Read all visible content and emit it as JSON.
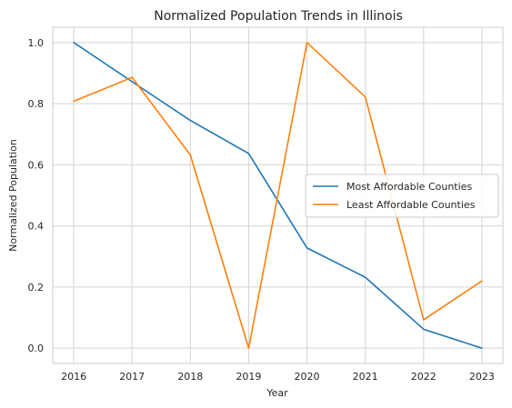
{
  "chart_data": {
    "type": "line",
    "title": "Normalized Population Trends in Illinois",
    "xlabel": "Year",
    "ylabel": "Normalized Population",
    "x": [
      "2016",
      "2017",
      "2018",
      "2019",
      "2020",
      "2021",
      "2022",
      "2023"
    ],
    "xlim": [
      2015.64,
      2023.36
    ],
    "ylim": [
      -0.05,
      1.05
    ],
    "yticks": [
      "0.0",
      "0.2",
      "0.4",
      "0.6",
      "0.8",
      "1.0"
    ],
    "grid": true,
    "legend_position": "center-right",
    "series": [
      {
        "name": "Most Affordable Counties",
        "color": "#1f77b4",
        "values": [
          1.0,
          0.872,
          0.745,
          0.637,
          0.328,
          0.232,
          0.062,
          0.0
        ]
      },
      {
        "name": "Least Affordable Counties",
        "color": "#ff7f0e",
        "values": [
          0.808,
          0.886,
          0.632,
          0.0,
          1.0,
          0.822,
          0.093,
          0.22
        ]
      }
    ]
  }
}
